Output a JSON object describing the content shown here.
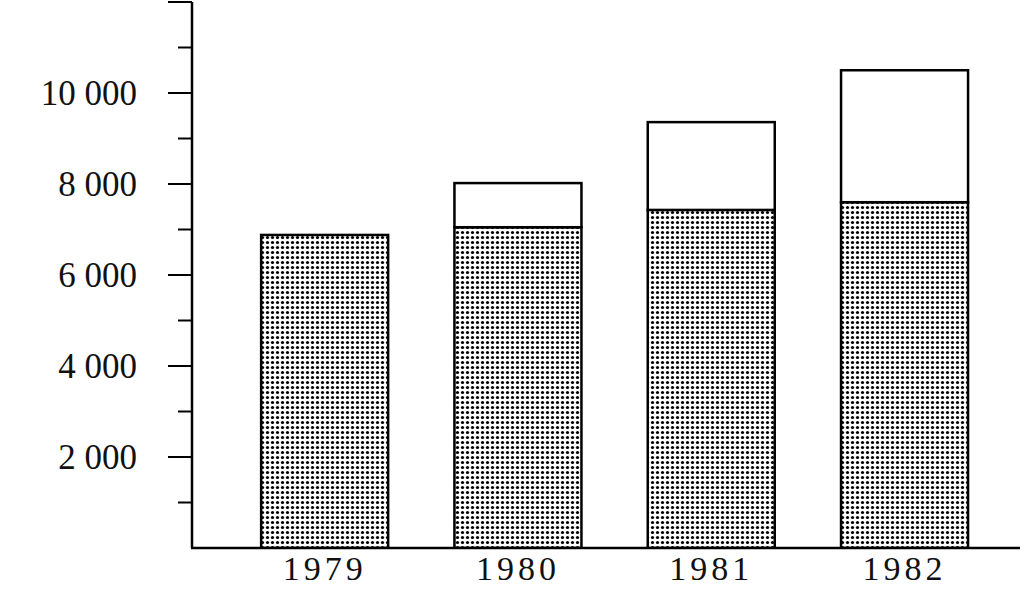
{
  "chart_data": {
    "type": "bar",
    "stacked": true,
    "categories": [
      "1979",
      "1980",
      "1981",
      "1982"
    ],
    "series": [
      {
        "color": "#000000",
        "values": [
          6880,
          7050,
          7430,
          7600
        ]
      },
      {
        "color": "#ffffff",
        "values": [
          null,
          970,
          1930,
          2900
        ]
      }
    ],
    "ylim": [
      0,
      12000
    ],
    "yticks": [
      {
        "value": 2000,
        "label": "2 000"
      },
      {
        "value": 4000,
        "label": "4 000"
      },
      {
        "value": 6000,
        "label": "6 000"
      },
      {
        "value": 8000,
        "label": "8 000"
      },
      {
        "value": 10000,
        "label": "10 000"
      }
    ],
    "grid": false
  }
}
